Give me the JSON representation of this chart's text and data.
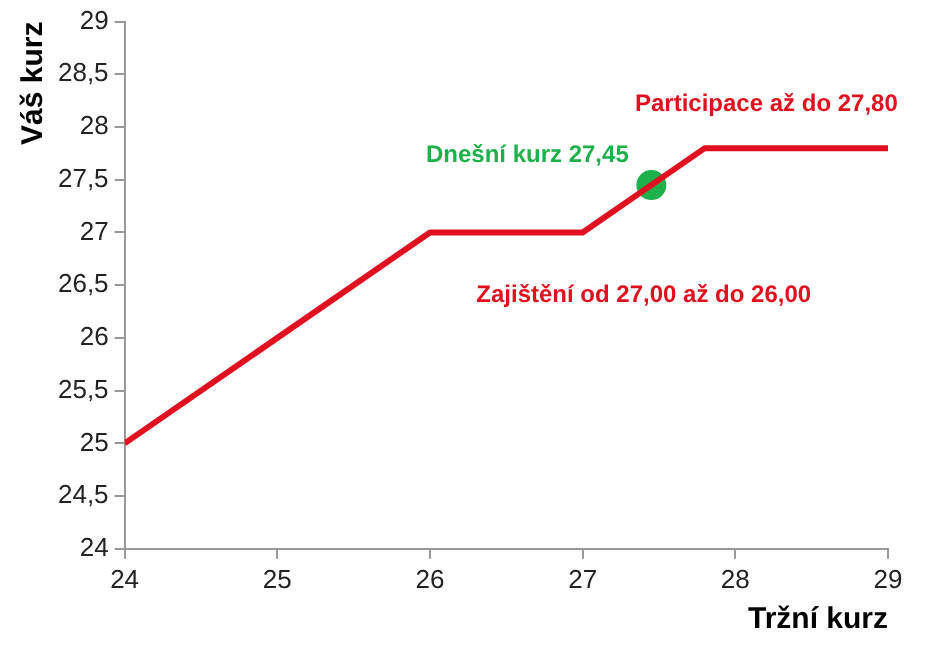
{
  "chart_data": {
    "type": "line",
    "xlabel": "Tržní kurz",
    "ylabel": "Váš kurz",
    "xlim": [
      24,
      29
    ],
    "xticks": [
      24,
      25,
      26,
      27,
      28,
      29
    ],
    "ylim": [
      24,
      29
    ],
    "yticks": [
      24,
      {
        "value": 24.5,
        "label": "24,5"
      },
      25,
      {
        "value": 25.5,
        "label": "25,5"
      },
      26,
      {
        "value": 26.5,
        "label": "26,5"
      },
      27,
      {
        "value": 27.5,
        "label": "27,5"
      },
      28,
      {
        "value": 28.5,
        "label": "28,5"
      },
      29
    ],
    "series": [
      {
        "type": "line",
        "color": "#e01020",
        "marker": "none",
        "x": [
          24,
          26,
          27,
          27.8,
          29
        ],
        "values": [
          25,
          27,
          27,
          27.8,
          27.8
        ]
      },
      {
        "type": "scatter",
        "color": "#1eb04a",
        "marker": "circle",
        "x": [
          27.45
        ],
        "values": [
          27.45
        ]
      }
    ],
    "annotations": [
      {
        "text": "Participace až do 27,80",
        "x": 28.4,
        "y": 27.8
      },
      {
        "text": "Dnešní kurz 27,45",
        "x": 27.45,
        "y": 27.45
      },
      "Zajištění od 27,00 až do 26,00"
    ],
    "grid": false,
    "legend": false,
    "line_style": "solid"
  }
}
